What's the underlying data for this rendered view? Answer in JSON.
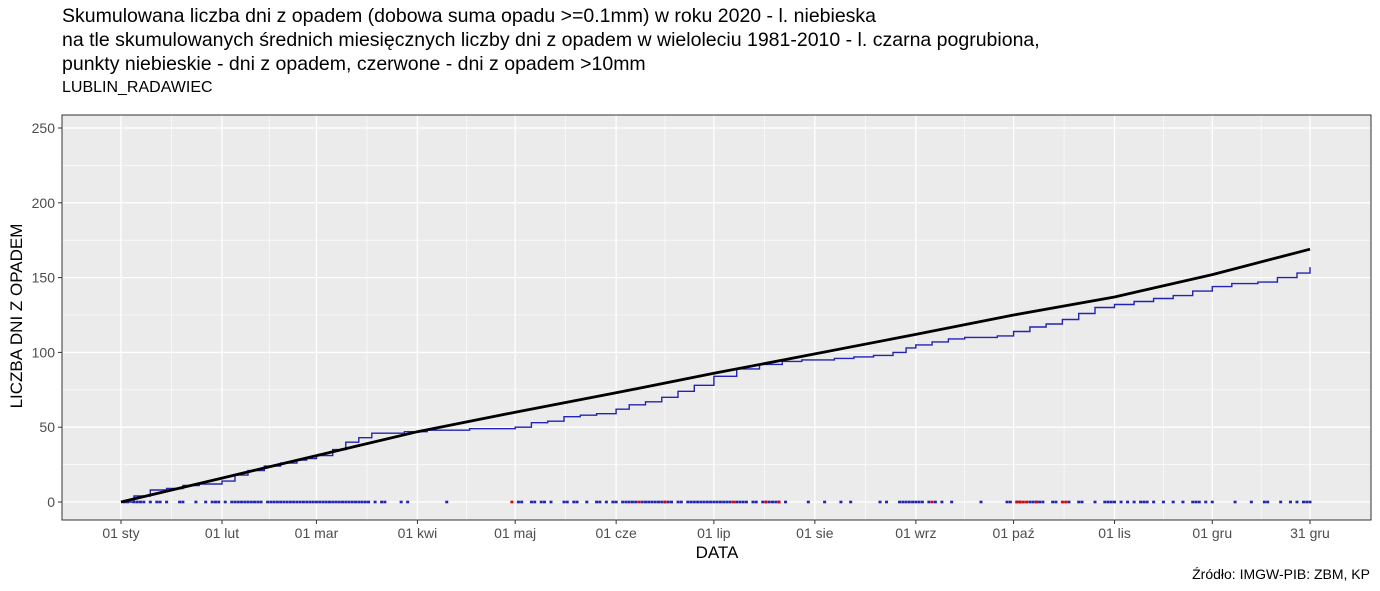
{
  "titles": {
    "line1": "Skumulowana liczba dni z opadem (dobowa suma opadu >=0.1mm) w roku 2020 - l. niebieska",
    "line2": "na tle skumulowanych średnich miesięcznych liczby dni z opadem w wieloleciu 1981-2010 - l. czarna pogrubiona,",
    "line3": "punkty niebieskie - dni z opadem, czerwone - dni z opadem >10mm",
    "station": "LUBLIN_RADAWIEC"
  },
  "source": "Źródło: IMGW-PIB: ZBM, KP",
  "colors": {
    "panel": "#ebebeb",
    "grid": "#ffffff",
    "blue": "#2323b4",
    "black": "#000000",
    "red": "#e00000"
  },
  "chart_data": {
    "type": "line",
    "xlabel": "DATA",
    "ylabel": "LICZBA DNI Z OPADEM",
    "xlim": [
      1,
      366
    ],
    "ylim": [
      0,
      250
    ],
    "y_ticks": [
      0,
      50,
      100,
      150,
      200,
      250
    ],
    "x_ticks": [
      {
        "day": 1,
        "label": "01 sty"
      },
      {
        "day": 32,
        "label": "01 lut"
      },
      {
        "day": 61,
        "label": "01 mar"
      },
      {
        "day": 92,
        "label": "01 kwi"
      },
      {
        "day": 122,
        "label": "01 maj"
      },
      {
        "day": 153,
        "label": "01 cze"
      },
      {
        "day": 183,
        "label": "01 lip"
      },
      {
        "day": 214,
        "label": "01 sie"
      },
      {
        "day": 245,
        "label": "01 wrz"
      },
      {
        "day": 275,
        "label": "01 paź"
      },
      {
        "day": 306,
        "label": "01 lis"
      },
      {
        "day": 336,
        "label": "01 gru"
      },
      {
        "day": 366,
        "label": "31 gru"
      }
    ],
    "grid": true,
    "series": [
      {
        "line": "normal 1981-2010 (black, bold)",
        "x": [
          1,
          32,
          61,
          92,
          122,
          153,
          183,
          214,
          245,
          275,
          306,
          336,
          366
        ],
        "y": [
          0,
          16,
          31,
          47,
          60,
          73,
          86,
          99,
          112,
          125,
          137,
          152,
          169
        ]
      },
      {
        "line": "2020 (blue, step)",
        "x": [
          1,
          5,
          10,
          15,
          20,
          25,
          29,
          32,
          36,
          40,
          45,
          50,
          55,
          58,
          61,
          66,
          70,
          74,
          78,
          83,
          88,
          95,
          100,
          108,
          115,
          122,
          127,
          132,
          137,
          142,
          147,
          153,
          157,
          162,
          167,
          172,
          177,
          183,
          190,
          197,
          204,
          210,
          214,
          220,
          226,
          232,
          238,
          242,
          245,
          250,
          255,
          260,
          266,
          270,
          275,
          280,
          285,
          290,
          295,
          300,
          306,
          312,
          318,
          324,
          330,
          336,
          342,
          350,
          356,
          362,
          366
        ],
        "y": [
          0,
          4,
          8,
          9,
          11,
          12,
          12,
          14,
          18,
          21,
          24,
          26,
          28,
          29,
          31,
          35,
          40,
          43,
          46,
          46,
          47,
          48,
          48,
          49,
          49,
          50,
          53,
          54,
          57,
          58,
          59,
          62,
          65,
          67,
          70,
          74,
          78,
          84,
          89,
          92,
          94,
          95,
          95,
          96,
          97,
          98,
          100,
          103,
          105,
          107,
          109,
          110,
          110,
          111,
          114,
          117,
          119,
          122,
          126,
          130,
          132,
          134,
          136,
          138,
          141,
          144,
          146,
          147,
          150,
          153,
          157
        ]
      }
    ],
    "rain_days_blue": [
      2,
      3,
      5,
      6,
      7,
      8,
      10,
      12,
      13,
      15,
      19,
      20,
      24,
      27,
      29,
      30,
      31,
      33,
      35,
      36,
      37,
      38,
      39,
      40,
      41,
      42,
      43,
      44,
      46,
      47,
      48,
      49,
      50,
      51,
      52,
      53,
      54,
      55,
      56,
      57,
      58,
      59,
      60,
      61,
      62,
      63,
      64,
      65,
      66,
      67,
      68,
      69,
      70,
      71,
      72,
      73,
      74,
      75,
      76,
      77,
      79,
      81,
      82,
      87,
      89,
      101,
      123,
      124,
      127,
      128,
      130,
      131,
      133,
      137,
      138,
      140,
      141,
      144,
      147,
      148,
      150,
      152,
      153,
      155,
      156,
      157,
      158,
      159,
      161,
      162,
      163,
      164,
      165,
      166,
      167,
      168,
      169,
      170,
      172,
      173,
      175,
      176,
      177,
      178,
      179,
      180,
      181,
      182,
      183,
      184,
      185,
      186,
      187,
      188,
      190,
      191,
      192,
      193,
      195,
      196,
      198,
      199,
      200,
      201,
      202,
      203,
      205,
      212,
      217,
      222,
      225,
      234,
      236,
      240,
      241,
      242,
      243,
      244,
      245,
      246,
      247,
      249,
      251,
      253,
      256,
      265,
      273,
      274,
      276,
      277,
      280,
      281,
      282,
      283,
      284,
      287,
      288,
      292,
      295,
      296,
      300,
      303,
      304,
      305,
      306,
      308,
      310,
      312,
      314,
      315,
      316,
      318,
      321,
      324,
      327,
      330,
      331,
      332,
      334,
      336,
      343,
      348,
      352,
      353,
      357,
      360,
      362,
      364,
      365,
      366
    ],
    "rain_days_red": [
      121,
      160,
      168,
      189,
      199,
      203,
      250,
      276,
      277,
      278,
      279,
      282,
      290,
      291
    ]
  }
}
